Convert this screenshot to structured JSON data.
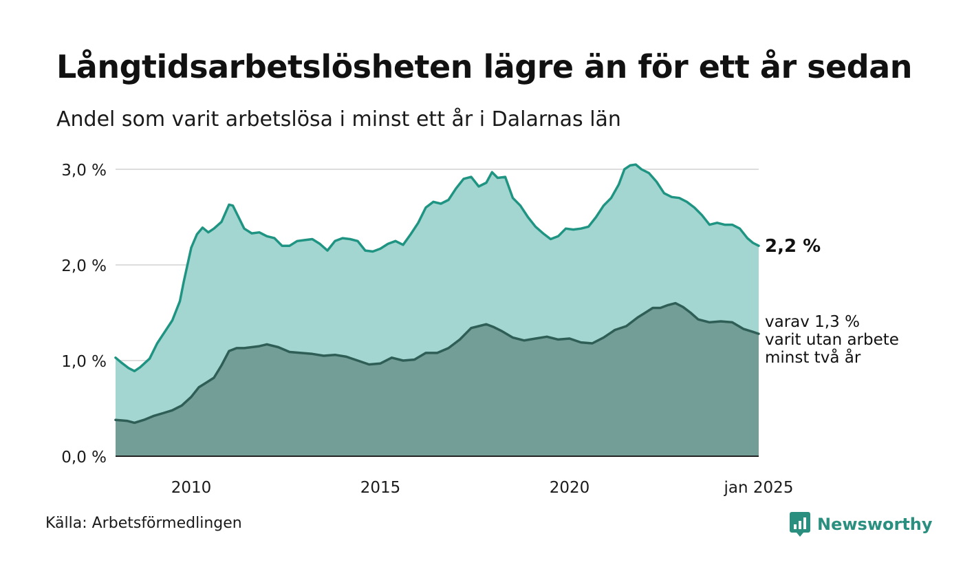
{
  "title": "Långtidsarbetslösheten lägre än för ett år sedan",
  "subtitle": "Andel som varit arbetslösa i minst ett år i Dalarnas län",
  "source": "Källa: Arbetsförmedlingen",
  "brand": {
    "name": "Newsworthy",
    "icon": "newsworthy-logo-icon"
  },
  "labels": {
    "total_last": "2,2 %",
    "sub_line1": "varav 1,3 %",
    "sub_line2": "varit utan arbete",
    "sub_line3": "minst två år"
  },
  "colors": {
    "total_line": "#1f9482",
    "total_fill": "#a3d6d0",
    "sub_line": "#2e5e55",
    "sub_fill": "#729e97",
    "grid": "#dddddd",
    "brand": "#2b8f80"
  },
  "chart_data": {
    "type": "area",
    "x": [
      "2008",
      "2009",
      "2010",
      "2011",
      "2012",
      "2013",
      "2014",
      "2015",
      "2016",
      "2017",
      "2018",
      "2019",
      "2020",
      "2021",
      "2022",
      "2023",
      "2024",
      "jan 2025"
    ],
    "x_ticks": [
      "2010",
      "2015",
      "2020",
      "jan 2025"
    ],
    "x_tick_values": [
      2010,
      2015,
      2020,
      2025
    ],
    "xlim": [
      2008,
      2025
    ],
    "ylim": [
      0,
      3
    ],
    "y_ticks": [
      "0,0 %",
      "1,0 %",
      "2,0 %",
      "3,0 %"
    ],
    "y_tick_values": [
      0,
      1,
      2,
      3
    ],
    "grid": true,
    "series": [
      {
        "name": "",
        "x": [
          2008.0,
          2008.15,
          2008.35,
          2008.5,
          2008.65,
          2008.9,
          2009.1,
          2009.3,
          2009.5,
          2009.7,
          2009.8,
          2009.9,
          2010.0,
          2010.15,
          2010.3,
          2010.45,
          2010.6,
          2010.8,
          2011.0,
          2011.1,
          2011.25,
          2011.4,
          2011.6,
          2011.8,
          2012.0,
          2012.2,
          2012.4,
          2012.6,
          2012.8,
          2013.0,
          2013.2,
          2013.4,
          2013.6,
          2013.8,
          2014.0,
          2014.2,
          2014.4,
          2014.6,
          2014.8,
          2015.0,
          2015.2,
          2015.4,
          2015.6,
          2015.8,
          2016.0,
          2016.2,
          2016.4,
          2016.6,
          2016.8,
          2017.0,
          2017.2,
          2017.4,
          2017.6,
          2017.8,
          2017.95,
          2018.1,
          2018.3,
          2018.5,
          2018.7,
          2018.9,
          2019.1,
          2019.3,
          2019.5,
          2019.7,
          2019.9,
          2020.1,
          2020.3,
          2020.5,
          2020.7,
          2020.9,
          2021.1,
          2021.3,
          2021.45,
          2021.6,
          2021.75,
          2021.9,
          2022.1,
          2022.3,
          2022.5,
          2022.7,
          2022.9,
          2023.1,
          2023.3,
          2023.5,
          2023.7,
          2023.9,
          2024.1,
          2024.3,
          2024.5,
          2024.7,
          2024.85,
          2025.0
        ],
        "values": [
          1.03,
          0.98,
          0.92,
          0.89,
          0.93,
          1.02,
          1.18,
          1.3,
          1.42,
          1.62,
          1.82,
          2.0,
          2.18,
          2.32,
          2.39,
          2.34,
          2.38,
          2.45,
          2.63,
          2.62,
          2.5,
          2.38,
          2.33,
          2.34,
          2.3,
          2.28,
          2.2,
          2.2,
          2.25,
          2.26,
          2.27,
          2.22,
          2.15,
          2.25,
          2.28,
          2.27,
          2.25,
          2.15,
          2.14,
          2.17,
          2.22,
          2.25,
          2.21,
          2.32,
          2.44,
          2.6,
          2.66,
          2.64,
          2.68,
          2.8,
          2.9,
          2.92,
          2.82,
          2.86,
          2.97,
          2.91,
          2.92,
          2.7,
          2.62,
          2.5,
          2.4,
          2.33,
          2.27,
          2.3,
          2.38,
          2.37,
          2.38,
          2.4,
          2.5,
          2.62,
          2.7,
          2.84,
          3.0,
          3.04,
          3.05,
          3.0,
          2.96,
          2.87,
          2.75,
          2.71,
          2.7,
          2.66,
          2.6,
          2.52,
          2.42,
          2.44,
          2.42,
          2.42,
          2.38,
          2.28,
          2.23,
          2.2
        ]
      },
      {
        "name": "",
        "x": [
          2008.0,
          2008.3,
          2008.5,
          2008.75,
          2009.0,
          2009.25,
          2009.5,
          2009.75,
          2010.0,
          2010.2,
          2010.4,
          2010.6,
          2010.8,
          2011.0,
          2011.2,
          2011.4,
          2011.6,
          2011.8,
          2012.0,
          2012.3,
          2012.6,
          2012.9,
          2013.2,
          2013.5,
          2013.8,
          2014.1,
          2014.4,
          2014.7,
          2015.0,
          2015.3,
          2015.6,
          2015.9,
          2016.2,
          2016.5,
          2016.8,
          2017.1,
          2017.4,
          2017.6,
          2017.8,
          2018.0,
          2018.2,
          2018.5,
          2018.8,
          2019.1,
          2019.4,
          2019.7,
          2020.0,
          2020.3,
          2020.6,
          2020.9,
          2021.2,
          2021.5,
          2021.8,
          2022.0,
          2022.2,
          2022.4,
          2022.6,
          2022.8,
          2023.0,
          2023.2,
          2023.4,
          2023.7,
          2024.0,
          2024.3,
          2024.6,
          2024.85,
          2025.0
        ],
        "values": [
          0.38,
          0.37,
          0.35,
          0.38,
          0.42,
          0.45,
          0.48,
          0.53,
          0.62,
          0.72,
          0.77,
          0.82,
          0.95,
          1.1,
          1.13,
          1.13,
          1.14,
          1.15,
          1.17,
          1.14,
          1.09,
          1.08,
          1.07,
          1.05,
          1.06,
          1.04,
          1.0,
          0.96,
          0.97,
          1.03,
          1.0,
          1.01,
          1.08,
          1.08,
          1.13,
          1.22,
          1.34,
          1.36,
          1.38,
          1.35,
          1.31,
          1.24,
          1.21,
          1.23,
          1.25,
          1.22,
          1.23,
          1.19,
          1.18,
          1.24,
          1.32,
          1.36,
          1.45,
          1.5,
          1.55,
          1.55,
          1.58,
          1.6,
          1.56,
          1.5,
          1.43,
          1.4,
          1.41,
          1.4,
          1.33,
          1.3,
          1.28
        ]
      }
    ]
  }
}
